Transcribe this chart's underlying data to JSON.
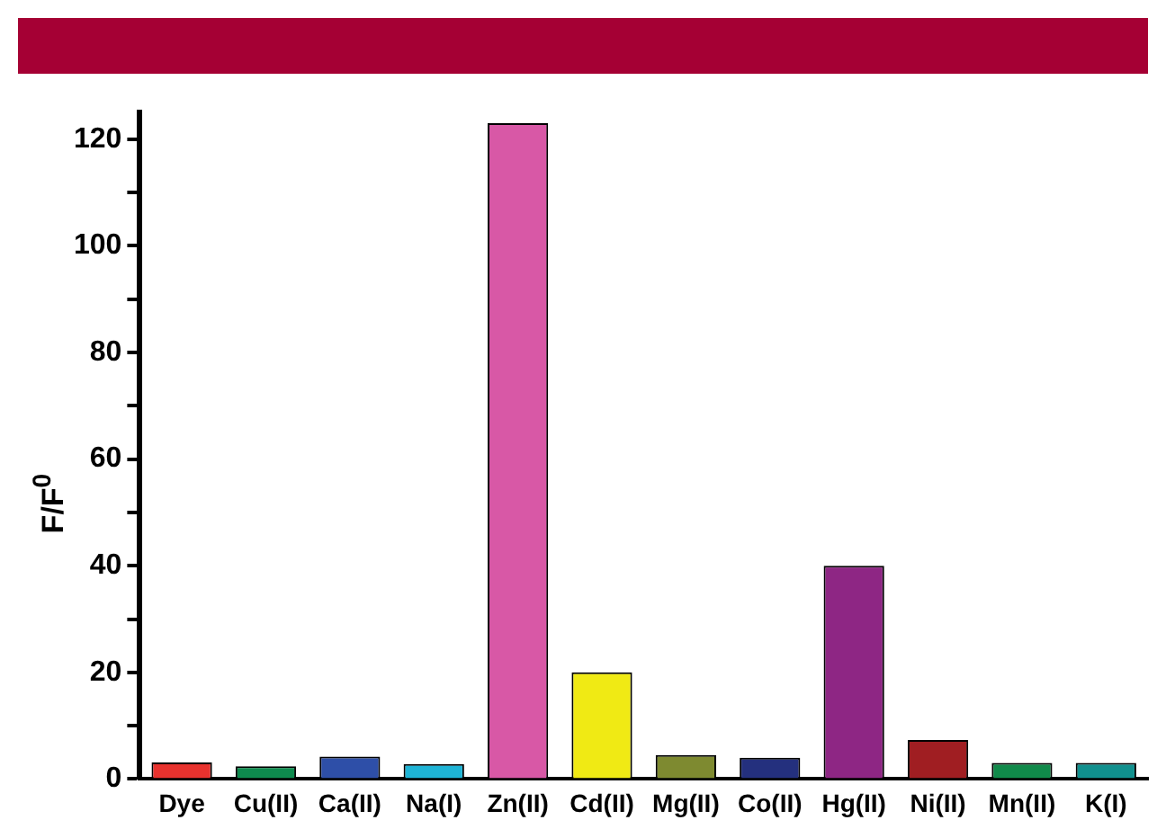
{
  "chart_data": {
    "type": "bar",
    "ylabel": "F/F$^{0}$",
    "categories": [
      "Dye",
      "Cu(II)",
      "Ca(II)",
      "Na(I)",
      "Zn(II)",
      "Cd(II)",
      "Mg(II)",
      "Co(II)",
      "Hg(II)",
      "Ni(II)",
      "Mn(II)",
      "K(I)"
    ],
    "values": [
      3.1,
      2.4,
      4.2,
      2.8,
      123,
      20,
      4.5,
      4,
      40,
      7.3,
      3,
      3
    ],
    "colors": [
      "#e8322e",
      "#0e8a4e",
      "#2e4fa8",
      "#1eb4d6",
      "#d858a6",
      "#f0ea14",
      "#7e8a30",
      "#24307e",
      "#8e2684",
      "#a01e22",
      "#108a4a",
      "#10908e"
    ],
    "ylim": [
      0,
      125
    ],
    "yticks": [
      0,
      {
        "value": 10,
        "label": null
      },
      20,
      {
        "value": 30,
        "label": null
      },
      40,
      {
        "value": 50,
        "label": null
      },
      60,
      {
        "value": 70,
        "label": null
      },
      80,
      {
        "value": 90,
        "label": null
      },
      100,
      {
        "value": 110,
        "label": null
      },
      120
    ],
    "grid": false,
    "legend": false
  }
}
